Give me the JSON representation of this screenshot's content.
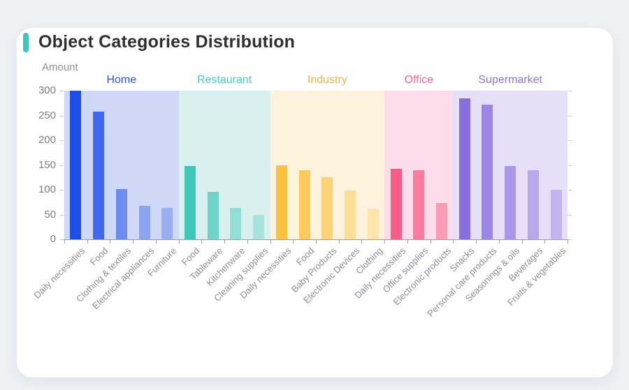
{
  "card": {
    "title": "Object Categories Distribution",
    "accent_color": "#3ec6ba"
  },
  "chart_data": {
    "type": "bar",
    "title": "Object Categories Distribution",
    "ylabel": "Amount",
    "xlabel": "",
    "ylim": [
      0,
      300
    ],
    "yticks": [
      0,
      50,
      100,
      150,
      200,
      250,
      300
    ],
    "grid": false,
    "legend_position": "group-labels-above-bands",
    "axis_color": "#9a9aa2",
    "tick_label_color": "#7e7e86",
    "x_label_color": "#8e8e99",
    "x_label_rotation_deg": 45,
    "groups": [
      {
        "name": "Home",
        "label_color": "#2b54e8",
        "band_color": "#cfd9f7",
        "bars": [
          {
            "label": "Daily necessities",
            "value": 300,
            "color": "#1d4fe8"
          },
          {
            "label": "Food",
            "value": 258,
            "color": "#3f68ea"
          },
          {
            "label": "Clothing & textiles",
            "value": 101,
            "color": "#6d8cef"
          },
          {
            "label": "Electrical appliances",
            "value": 68,
            "color": "#8ba4f2"
          },
          {
            "label": "Furniture",
            "value": 63,
            "color": "#9aaef3"
          }
        ]
      },
      {
        "name": "Restaurant",
        "label_color": "#45d0c0",
        "band_color": "#d9f1ee",
        "bars": [
          {
            "label": "Food",
            "value": 148,
            "color": "#3ec6b8"
          },
          {
            "label": "Tableware",
            "value": 96,
            "color": "#6fd3c8"
          },
          {
            "label": "Kitchenware",
            "value": 64,
            "color": "#92ded4"
          },
          {
            "label": "Cleaning supplies",
            "value": 50,
            "color": "#a8e4dc"
          }
        ]
      },
      {
        "name": "Industry",
        "label_color": "#f0b445",
        "band_color": "#fdf3dc",
        "bars": [
          {
            "label": "Daily necessities",
            "value": 150,
            "color": "#fcc13d"
          },
          {
            "label": "Food",
            "value": 139,
            "color": "#fccb5b"
          },
          {
            "label": "Baby Products",
            "value": 125,
            "color": "#fdd378"
          },
          {
            "label": "Electronic Devices",
            "value": 98,
            "color": "#fdde97"
          },
          {
            "label": "Clothing",
            "value": 62,
            "color": "#fde5ac"
          }
        ]
      },
      {
        "name": "Office",
        "label_color": "#f9679a",
        "band_color": "#fcdde9",
        "bars": [
          {
            "label": "Daily necessities",
            "value": 142,
            "color": "#f85d89"
          },
          {
            "label": "Office supplies",
            "value": 139,
            "color": "#f97b9e"
          },
          {
            "label": "Electronic products",
            "value": 73,
            "color": "#fb9cb7"
          }
        ]
      },
      {
        "name": "Supermarket",
        "label_color": "#8d75e6",
        "band_color": "#e5e0f8",
        "bars": [
          {
            "label": "Snacks",
            "value": 285,
            "color": "#8a6ede"
          },
          {
            "label": "Personal care products",
            "value": 272,
            "color": "#9d85e5"
          },
          {
            "label": "Seasonings & oils",
            "value": 148,
            "color": "#ab96e9"
          },
          {
            "label": "Beverages",
            "value": 140,
            "color": "#b9a7ee"
          },
          {
            "label": "Fruits & vegetables",
            "value": 100,
            "color": "#c3b4f0"
          }
        ]
      }
    ]
  }
}
